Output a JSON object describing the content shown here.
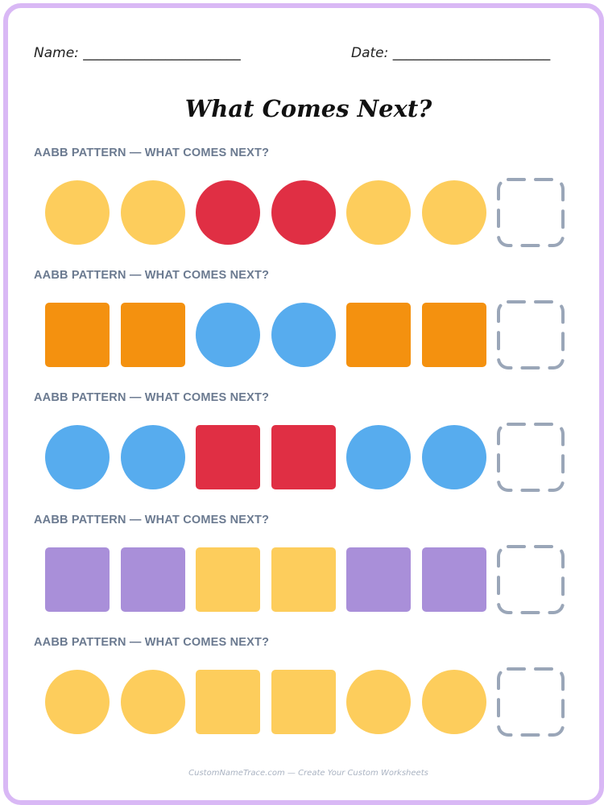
{
  "header": {
    "name_label": "Name: _______________________",
    "date_label": "Date: _______________________"
  },
  "title": "What Comes Next?",
  "colors": {
    "yellow": "#fdcd5c",
    "red": "#e02f44",
    "orange": "#f4910f",
    "blue": "#57acee",
    "purple": "#a98fd9",
    "blank_border": "#9aa6b8"
  },
  "patterns": [
    {
      "label": "AABB PATTERN — WHAT COMES NEXT?",
      "shapes": [
        {
          "shape": "circle",
          "color": "yellow"
        },
        {
          "shape": "circle",
          "color": "yellow"
        },
        {
          "shape": "circle",
          "color": "red"
        },
        {
          "shape": "circle",
          "color": "red"
        },
        {
          "shape": "circle",
          "color": "yellow"
        },
        {
          "shape": "circle",
          "color": "yellow"
        }
      ]
    },
    {
      "label": "AABB PATTERN — WHAT COMES NEXT?",
      "shapes": [
        {
          "shape": "square",
          "color": "orange"
        },
        {
          "shape": "square",
          "color": "orange"
        },
        {
          "shape": "circle",
          "color": "blue"
        },
        {
          "shape": "circle",
          "color": "blue"
        },
        {
          "shape": "square",
          "color": "orange"
        },
        {
          "shape": "square",
          "color": "orange"
        }
      ]
    },
    {
      "label": "AABB PATTERN — WHAT COMES NEXT?",
      "shapes": [
        {
          "shape": "circle",
          "color": "blue"
        },
        {
          "shape": "circle",
          "color": "blue"
        },
        {
          "shape": "square",
          "color": "red"
        },
        {
          "shape": "square",
          "color": "red"
        },
        {
          "shape": "circle",
          "color": "blue"
        },
        {
          "shape": "circle",
          "color": "blue"
        }
      ]
    },
    {
      "label": "AABB PATTERN — WHAT COMES NEXT?",
      "shapes": [
        {
          "shape": "square",
          "color": "purple"
        },
        {
          "shape": "square",
          "color": "purple"
        },
        {
          "shape": "square",
          "color": "yellow"
        },
        {
          "shape": "square",
          "color": "yellow"
        },
        {
          "shape": "square",
          "color": "purple"
        },
        {
          "shape": "square",
          "color": "purple"
        }
      ]
    },
    {
      "label": "AABB PATTERN — WHAT COMES NEXT?",
      "shapes": [
        {
          "shape": "circle",
          "color": "yellow"
        },
        {
          "shape": "circle",
          "color": "yellow"
        },
        {
          "shape": "square",
          "color": "yellow"
        },
        {
          "shape": "square",
          "color": "yellow"
        },
        {
          "shape": "circle",
          "color": "yellow"
        },
        {
          "shape": "circle",
          "color": "yellow"
        }
      ]
    }
  ],
  "footer": "CustomNameTrace.com — Create Your Custom Worksheets"
}
